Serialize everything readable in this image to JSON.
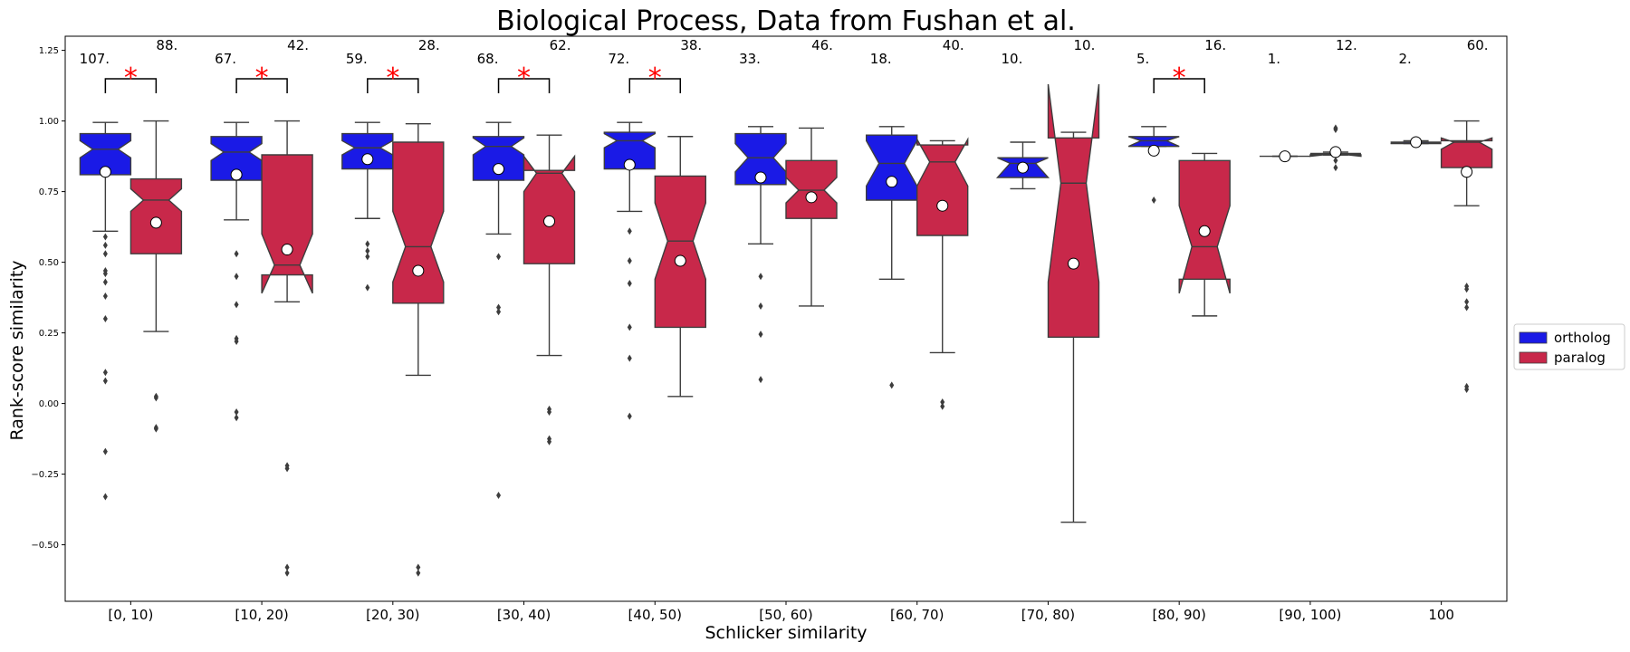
{
  "chart_data": {
    "type": "box",
    "title": "Biological Process, Data from Fushan et al.",
    "xlabel": "Schlicker similarity",
    "ylabel": "Rank-score similarity",
    "ylim": [
      -0.7,
      1.3
    ],
    "yticks": [
      -0.5,
      -0.25,
      0.0,
      0.25,
      0.5,
      0.75,
      1.0,
      1.25
    ],
    "ytick_labels": [
      "−0.50",
      "−0.25",
      "0.00",
      "0.25",
      "0.50",
      "0.75",
      "1.00",
      "1.25"
    ],
    "categories": [
      "[0, 10)",
      "[10, 20)",
      "[20, 30)",
      "[30, 40)",
      "[40, 50)",
      "[50, 60)",
      "[60, 70)",
      "[70, 80)",
      "[80, 90)",
      "[90, 100)",
      "100"
    ],
    "legend": {
      "placement": "right",
      "items": [
        {
          "label": "ortholog",
          "color": "#1a1ae6"
        },
        {
          "label": "paralog",
          "color": "#c8284a"
        }
      ]
    },
    "significance_marker": "*",
    "significance_color": "#ff0000",
    "series": [
      {
        "name": "ortholog",
        "color": "#1a1ae6",
        "counts": [
          "107.",
          "67.",
          "59.",
          "68.",
          "72.",
          "33.",
          "18.",
          "10.",
          "5.",
          "1.",
          "2."
        ],
        "boxes": [
          {
            "whislo": 0.61,
            "q1": 0.81,
            "med": 0.9,
            "q3": 0.955,
            "whishi": 0.995,
            "notch_lo": 0.87,
            "notch_hi": 0.93,
            "mean": 0.82,
            "fliers": [
              0.59,
              0.56,
              0.53,
              0.47,
              0.46,
              0.43,
              0.38,
              0.3,
              0.11,
              0.08,
              -0.17,
              -0.33
            ]
          },
          {
            "whislo": 0.65,
            "q1": 0.79,
            "med": 0.89,
            "q3": 0.945,
            "whishi": 0.995,
            "notch_lo": 0.86,
            "notch_hi": 0.92,
            "mean": 0.81,
            "fliers": [
              0.53,
              0.45,
              0.35,
              0.23,
              0.22,
              -0.03,
              -0.05
            ]
          },
          {
            "whislo": 0.655,
            "q1": 0.83,
            "med": 0.905,
            "q3": 0.955,
            "whishi": 0.995,
            "notch_lo": 0.88,
            "notch_hi": 0.93,
            "mean": 0.865,
            "fliers": [
              0.565,
              0.54,
              0.52,
              0.41
            ]
          },
          {
            "whislo": 0.6,
            "q1": 0.79,
            "med": 0.91,
            "q3": 0.945,
            "whishi": 0.995,
            "notch_lo": 0.88,
            "notch_hi": 0.94,
            "mean": 0.83,
            "fliers": [
              0.52,
              0.34,
              0.325,
              -0.325
            ]
          },
          {
            "whislo": 0.68,
            "q1": 0.83,
            "med": 0.93,
            "q3": 0.96,
            "whishi": 0.995,
            "notch_lo": 0.905,
            "notch_hi": 0.955,
            "mean": 0.845,
            "fliers": [
              0.61,
              0.505,
              0.425,
              0.27,
              0.16,
              -0.045
            ]
          },
          {
            "whislo": 0.565,
            "q1": 0.775,
            "med": 0.87,
            "q3": 0.955,
            "whishi": 0.98,
            "notch_lo": 0.82,
            "notch_hi": 0.92,
            "mean": 0.8,
            "fliers": [
              0.45,
              0.345,
              0.245,
              0.085
            ]
          },
          {
            "whislo": 0.44,
            "q1": 0.72,
            "med": 0.85,
            "q3": 0.95,
            "whishi": 0.98,
            "notch_lo": 0.77,
            "notch_hi": 0.93,
            "mean": 0.785,
            "fliers": [
              0.065
            ]
          },
          {
            "whislo": 0.76,
            "q1": 0.8,
            "med": 0.85,
            "q3": 0.87,
            "whishi": 0.925,
            "notch_lo": 0.8,
            "notch_hi": 0.87,
            "mean": 0.835,
            "fliers": []
          },
          {
            "whislo": 0.91,
            "q1": 0.91,
            "med": 0.93,
            "q3": 0.945,
            "whishi": 0.98,
            "notch_lo": 0.91,
            "notch_hi": 0.945,
            "mean": 0.895,
            "fliers": [
              0.72
            ]
          },
          {
            "whislo": 0.875,
            "q1": 0.875,
            "med": 0.875,
            "q3": 0.875,
            "whishi": 0.875,
            "notch_lo": 0.875,
            "notch_hi": 0.875,
            "mean": 0.875,
            "fliers": []
          },
          {
            "whislo": 0.92,
            "q1": 0.92,
            "med": 0.925,
            "q3": 0.925,
            "whishi": 0.93,
            "notch_lo": 0.92,
            "notch_hi": 0.925,
            "mean": 0.925,
            "fliers": []
          }
        ]
      },
      {
        "name": "paralog",
        "color": "#c8284a",
        "counts": [
          "88.",
          "42.",
          "28.",
          "62.",
          "38.",
          "46.",
          "40.",
          "10.",
          "16.",
          "12.",
          "60."
        ],
        "boxes": [
          {
            "whislo": 0.255,
            "q1": 0.53,
            "med": 0.72,
            "q3": 0.795,
            "whishi": 1.0,
            "notch_lo": 0.68,
            "notch_hi": 0.76,
            "mean": 0.64,
            "fliers": [
              0.025,
              0.02,
              -0.085,
              -0.09
            ]
          },
          {
            "whislo": 0.36,
            "q1": 0.455,
            "med": 0.49,
            "q3": 0.88,
            "whishi": 1.0,
            "notch_lo": 0.39,
            "notch_hi": 0.6,
            "mean": 0.545,
            "fliers": [
              -0.22,
              -0.23,
              -0.58,
              -0.6
            ]
          },
          {
            "whislo": 0.1,
            "q1": 0.355,
            "med": 0.555,
            "q3": 0.925,
            "whishi": 0.99,
            "notch_lo": 0.43,
            "notch_hi": 0.68,
            "mean": 0.47,
            "fliers": [
              -0.58,
              -0.6
            ]
          },
          {
            "whislo": 0.17,
            "q1": 0.495,
            "med": 0.815,
            "q3": 0.825,
            "whishi": 0.95,
            "notch_lo": 0.75,
            "notch_hi": 0.875,
            "mean": 0.645,
            "fliers": [
              -0.02,
              -0.03,
              -0.125,
              -0.135
            ]
          },
          {
            "whislo": 0.025,
            "q1": 0.27,
            "med": 0.575,
            "q3": 0.805,
            "whishi": 0.945,
            "notch_lo": 0.44,
            "notch_hi": 0.71,
            "mean": 0.505,
            "fliers": []
          },
          {
            "whislo": 0.345,
            "q1": 0.655,
            "med": 0.755,
            "q3": 0.86,
            "whishi": 0.975,
            "notch_lo": 0.71,
            "notch_hi": 0.8,
            "mean": 0.73,
            "fliers": []
          },
          {
            "whislo": 0.18,
            "q1": 0.595,
            "med": 0.855,
            "q3": 0.915,
            "whishi": 0.93,
            "notch_lo": 0.77,
            "notch_hi": 0.935,
            "mean": 0.7,
            "fliers": [
              0.005,
              -0.01
            ]
          },
          {
            "whislo": -0.42,
            "q1": 0.235,
            "med": 0.78,
            "q3": 0.94,
            "whishi": 0.96,
            "notch_lo": 0.43,
            "notch_hi": 1.13,
            "mean": 0.495,
            "fliers": []
          },
          {
            "whislo": 0.31,
            "q1": 0.44,
            "med": 0.555,
            "q3": 0.86,
            "whishi": 0.885,
            "notch_lo": 0.39,
            "notch_hi": 0.7,
            "mean": 0.61,
            "fliers": []
          },
          {
            "whislo": 0.88,
            "q1": 0.88,
            "med": 0.88,
            "q3": 0.885,
            "whishi": 0.89,
            "notch_lo": 0.875,
            "notch_hi": 0.885,
            "mean": 0.89,
            "fliers": [
              0.975,
              0.97,
              0.86,
              0.835
            ]
          },
          {
            "whislo": 0.7,
            "q1": 0.835,
            "med": 0.925,
            "q3": 0.93,
            "whishi": 1.0,
            "notch_lo": 0.9,
            "notch_hi": 0.94,
            "mean": 0.82,
            "fliers": [
              0.415,
              0.405,
              0.36,
              0.34,
              0.06,
              0.05
            ]
          }
        ]
      }
    ],
    "significant_categories": [
      0,
      1,
      2,
      3,
      4,
      8
    ]
  }
}
